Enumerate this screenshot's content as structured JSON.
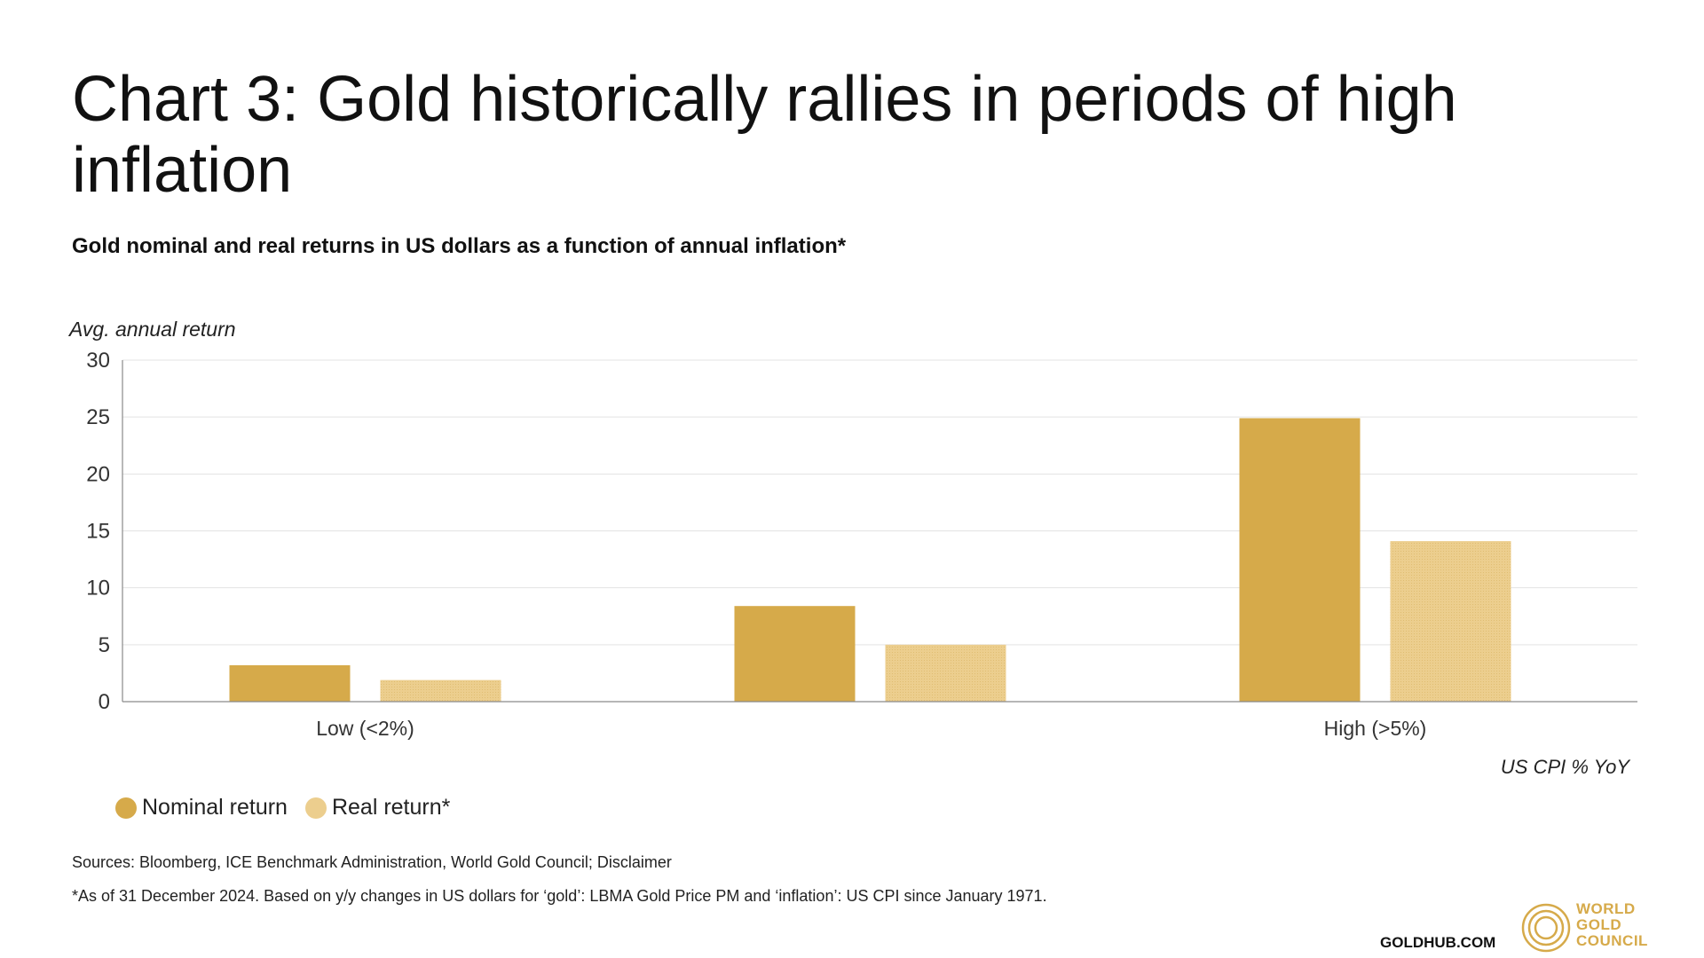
{
  "title": "Chart 3: Gold historically rallies in periods of high inflation",
  "subtitle": "Gold nominal and real returns in US dollars as a function of annual inflation*",
  "colors": {
    "nominal": "#d6aa4a",
    "real": "#ecce8e",
    "grid": "#e3e3e3",
    "axis": "#8a8a8a",
    "accent": "#d6aa4a"
  },
  "chart_data": {
    "type": "bar",
    "title": "Chart 3: Gold historically rallies in periods of high inflation",
    "subtitle": "Gold nominal and real returns in US dollars as a function of annual inflation*",
    "ylabel": "Avg. annual return",
    "xlabel": "US CPI % YoY",
    "categories": [
      "Low (<2%)",
      "",
      "High (>5%)"
    ],
    "series": [
      {
        "name": "Nominal return",
        "values": [
          3.2,
          8.4,
          24.9
        ]
      },
      {
        "name": "Real return*",
        "values": [
          1.9,
          5.0,
          14.1
        ]
      }
    ],
    "ylim": [
      0,
      30
    ],
    "yticks": [
      0,
      5,
      10,
      15,
      20,
      25,
      30
    ],
    "grid": true,
    "legend": "bottom-left"
  },
  "legend": {
    "items": [
      "Nominal return",
      "Real return*"
    ]
  },
  "footer": {
    "sources": "Sources: Bloomberg, ICE Benchmark Administration, World Gold Council; Disclaimer",
    "footnote": "*As of 31 December 2024. Based on y/y changes in US dollars for ‘gold’: LBMA Gold Price PM and ‘inflation’: US CPI since January 1971.",
    "site": "GOLDHUB.COM",
    "brand": [
      "WORLD",
      "GOLD",
      "COUNCIL"
    ]
  }
}
